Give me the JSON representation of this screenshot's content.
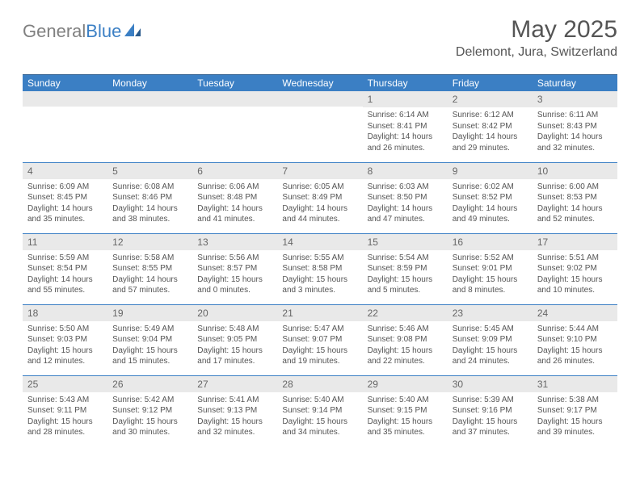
{
  "logo": {
    "text_gray": "General",
    "text_blue": "Blue"
  },
  "title": {
    "month": "May 2025",
    "location": "Delemont, Jura, Switzerland"
  },
  "weekdays": [
    "Sunday",
    "Monday",
    "Tuesday",
    "Wednesday",
    "Thursday",
    "Friday",
    "Saturday"
  ],
  "colors": {
    "header_bg": "#3b7fc4",
    "header_border": "#2a5a8c",
    "daynum_bg": "#e9e9e9",
    "text": "#555555",
    "logo_gray": "#808080"
  },
  "typography": {
    "title_fontsize": 30,
    "location_fontsize": 16,
    "weekday_fontsize": 12,
    "daynum_fontsize": 12,
    "cell_fontsize": 10
  },
  "grid": {
    "rows": 5,
    "cols": 7,
    "first_day_col": 4
  },
  "days": [
    {
      "n": "1",
      "sunrise": "6:14 AM",
      "sunset": "8:41 PM",
      "dl": "14 hours and 26 minutes."
    },
    {
      "n": "2",
      "sunrise": "6:12 AM",
      "sunset": "8:42 PM",
      "dl": "14 hours and 29 minutes."
    },
    {
      "n": "3",
      "sunrise": "6:11 AM",
      "sunset": "8:43 PM",
      "dl": "14 hours and 32 minutes."
    },
    {
      "n": "4",
      "sunrise": "6:09 AM",
      "sunset": "8:45 PM",
      "dl": "14 hours and 35 minutes."
    },
    {
      "n": "5",
      "sunrise": "6:08 AM",
      "sunset": "8:46 PM",
      "dl": "14 hours and 38 minutes."
    },
    {
      "n": "6",
      "sunrise": "6:06 AM",
      "sunset": "8:48 PM",
      "dl": "14 hours and 41 minutes."
    },
    {
      "n": "7",
      "sunrise": "6:05 AM",
      "sunset": "8:49 PM",
      "dl": "14 hours and 44 minutes."
    },
    {
      "n": "8",
      "sunrise": "6:03 AM",
      "sunset": "8:50 PM",
      "dl": "14 hours and 47 minutes."
    },
    {
      "n": "9",
      "sunrise": "6:02 AM",
      "sunset": "8:52 PM",
      "dl": "14 hours and 49 minutes."
    },
    {
      "n": "10",
      "sunrise": "6:00 AM",
      "sunset": "8:53 PM",
      "dl": "14 hours and 52 minutes."
    },
    {
      "n": "11",
      "sunrise": "5:59 AM",
      "sunset": "8:54 PM",
      "dl": "14 hours and 55 minutes."
    },
    {
      "n": "12",
      "sunrise": "5:58 AM",
      "sunset": "8:55 PM",
      "dl": "14 hours and 57 minutes."
    },
    {
      "n": "13",
      "sunrise": "5:56 AM",
      "sunset": "8:57 PM",
      "dl": "15 hours and 0 minutes."
    },
    {
      "n": "14",
      "sunrise": "5:55 AM",
      "sunset": "8:58 PM",
      "dl": "15 hours and 3 minutes."
    },
    {
      "n": "15",
      "sunrise": "5:54 AM",
      "sunset": "8:59 PM",
      "dl": "15 hours and 5 minutes."
    },
    {
      "n": "16",
      "sunrise": "5:52 AM",
      "sunset": "9:01 PM",
      "dl": "15 hours and 8 minutes."
    },
    {
      "n": "17",
      "sunrise": "5:51 AM",
      "sunset": "9:02 PM",
      "dl": "15 hours and 10 minutes."
    },
    {
      "n": "18",
      "sunrise": "5:50 AM",
      "sunset": "9:03 PM",
      "dl": "15 hours and 12 minutes."
    },
    {
      "n": "19",
      "sunrise": "5:49 AM",
      "sunset": "9:04 PM",
      "dl": "15 hours and 15 minutes."
    },
    {
      "n": "20",
      "sunrise": "5:48 AM",
      "sunset": "9:05 PM",
      "dl": "15 hours and 17 minutes."
    },
    {
      "n": "21",
      "sunrise": "5:47 AM",
      "sunset": "9:07 PM",
      "dl": "15 hours and 19 minutes."
    },
    {
      "n": "22",
      "sunrise": "5:46 AM",
      "sunset": "9:08 PM",
      "dl": "15 hours and 22 minutes."
    },
    {
      "n": "23",
      "sunrise": "5:45 AM",
      "sunset": "9:09 PM",
      "dl": "15 hours and 24 minutes."
    },
    {
      "n": "24",
      "sunrise": "5:44 AM",
      "sunset": "9:10 PM",
      "dl": "15 hours and 26 minutes."
    },
    {
      "n": "25",
      "sunrise": "5:43 AM",
      "sunset": "9:11 PM",
      "dl": "15 hours and 28 minutes."
    },
    {
      "n": "26",
      "sunrise": "5:42 AM",
      "sunset": "9:12 PM",
      "dl": "15 hours and 30 minutes."
    },
    {
      "n": "27",
      "sunrise": "5:41 AM",
      "sunset": "9:13 PM",
      "dl": "15 hours and 32 minutes."
    },
    {
      "n": "28",
      "sunrise": "5:40 AM",
      "sunset": "9:14 PM",
      "dl": "15 hours and 34 minutes."
    },
    {
      "n": "29",
      "sunrise": "5:40 AM",
      "sunset": "9:15 PM",
      "dl": "15 hours and 35 minutes."
    },
    {
      "n": "30",
      "sunrise": "5:39 AM",
      "sunset": "9:16 PM",
      "dl": "15 hours and 37 minutes."
    },
    {
      "n": "31",
      "sunrise": "5:38 AM",
      "sunset": "9:17 PM",
      "dl": "15 hours and 39 minutes."
    }
  ],
  "labels": {
    "sunrise": "Sunrise:",
    "sunset": "Sunset:",
    "daylight": "Daylight:"
  }
}
